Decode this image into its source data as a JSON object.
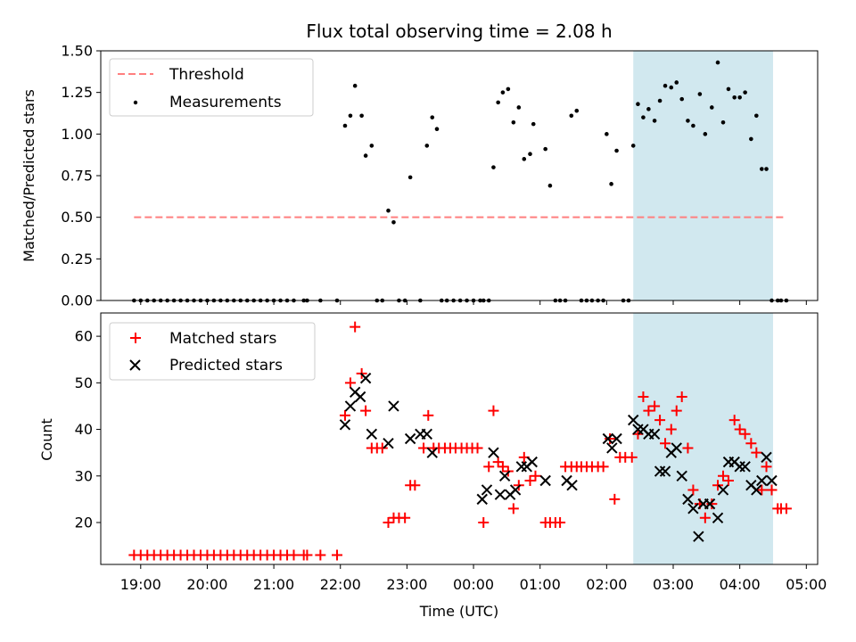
{
  "chart_data": [
    {
      "type": "scatter",
      "title": "Flux total observing time = 2.08 h",
      "xlabel": "",
      "ylabel": "Matched/Predicted stars",
      "xlim": [
        18.4,
        29.17
      ],
      "ylim": [
        0,
        1.5
      ],
      "y_ticks": [
        "0.00",
        "0.25",
        "0.50",
        "0.75",
        "1.00",
        "1.25",
        "1.50"
      ],
      "legend_position": "top-left",
      "highlight_span": [
        26.4,
        28.5
      ],
      "highlight_color": "#d1e8ef",
      "threshold": {
        "name": "Threshold",
        "value": 0.5,
        "x": [
          18.9,
          28.67
        ],
        "color": "#ff7f7f"
      },
      "series": [
        {
          "name": "Measurements",
          "color": "#000000",
          "x": [
            18.9,
            19.0,
            19.1,
            19.2,
            19.3,
            19.4,
            19.5,
            19.6,
            19.7,
            19.8,
            19.9,
            20.0,
            20.1,
            20.2,
            20.3,
            20.4,
            20.5,
            20.6,
            20.7,
            20.8,
            20.9,
            21.0,
            21.1,
            21.2,
            21.3,
            21.45,
            21.5,
            21.7,
            21.95,
            22.07,
            22.15,
            22.22,
            22.32,
            22.38,
            22.47,
            22.55,
            22.63,
            22.72,
            22.8,
            22.88,
            22.97,
            23.05,
            23.2,
            23.3,
            23.38,
            23.45,
            23.52,
            23.6,
            23.7,
            23.8,
            23.9,
            24.0,
            24.1,
            24.15,
            24.23,
            24.3,
            24.37,
            24.44,
            24.52,
            24.6,
            24.68,
            24.76,
            24.85,
            24.9,
            25.08,
            25.15,
            25.23,
            25.3,
            25.38,
            25.47,
            25.55,
            25.62,
            25.7,
            25.78,
            25.87,
            25.95,
            26.0,
            26.07,
            26.15,
            26.25,
            26.33,
            26.4,
            26.47,
            26.55,
            26.63,
            26.72,
            26.8,
            26.88,
            26.97,
            27.05,
            27.13,
            27.22,
            27.3,
            27.4,
            27.48,
            27.58,
            27.67,
            27.75,
            27.83,
            27.92,
            28.0,
            28.08,
            28.17,
            28.25,
            28.33,
            28.4,
            28.48,
            28.57,
            28.62,
            28.7
          ],
          "y": [
            0.0,
            0.0,
            0.0,
            0.0,
            0.0,
            0.0,
            0.0,
            0.0,
            0.0,
            0.0,
            0.0,
            0.0,
            0.0,
            0.0,
            0.0,
            0.0,
            0.0,
            0.0,
            0.0,
            0.0,
            0.0,
            0.0,
            0.0,
            0.0,
            0.0,
            0.0,
            0.0,
            0.0,
            0.0,
            1.05,
            1.11,
            1.29,
            1.11,
            0.87,
            0.93,
            0.0,
            0.0,
            0.54,
            0.47,
            0.0,
            0.0,
            0.74,
            0.0,
            0.93,
            1.1,
            1.03,
            0.0,
            0.0,
            0.0,
            0.0,
            0.0,
            0.0,
            0.0,
            0.0,
            0.0,
            0.8,
            1.19,
            1.25,
            1.27,
            1.07,
            1.16,
            0.85,
            0.88,
            1.06,
            0.91,
            0.69,
            0.0,
            0.0,
            0.0,
            1.11,
            1.14,
            0.0,
            0.0,
            0.0,
            0.0,
            0.0,
            1.0,
            0.7,
            0.9,
            0.0,
            0.0,
            0.93,
            1.18,
            1.1,
            1.15,
            1.08,
            1.2,
            1.29,
            1.28,
            1.31,
            1.21,
            1.08,
            1.05,
            1.24,
            1.0,
            1.16,
            1.43,
            1.07,
            1.27,
            1.22,
            1.22,
            1.25,
            0.97,
            1.11,
            0.79,
            0.79,
            0.0,
            0.0,
            0.0,
            0.0
          ]
        }
      ]
    },
    {
      "type": "scatter",
      "title": "",
      "xlabel": "Time (UTC)",
      "ylabel": "Count",
      "xlim": [
        18.4,
        29.17
      ],
      "ylim": [
        11,
        65
      ],
      "y_ticks": [
        "20",
        "30",
        "40",
        "50",
        "60"
      ],
      "x_ticks": [
        "19:00",
        "20:00",
        "21:00",
        "22:00",
        "23:00",
        "00:00",
        "01:00",
        "02:00",
        "03:00",
        "04:00",
        "05:00"
      ],
      "legend_position": "top-left",
      "highlight_span": [
        26.4,
        28.5
      ],
      "series": [
        {
          "name": "Matched stars",
          "marker": "plus",
          "color": "#ff0000",
          "x": [
            18.9,
            19.0,
            19.1,
            19.2,
            19.3,
            19.4,
            19.5,
            19.6,
            19.7,
            19.8,
            19.9,
            20.0,
            20.1,
            20.2,
            20.3,
            20.4,
            20.5,
            20.6,
            20.7,
            20.8,
            20.9,
            21.0,
            21.1,
            21.2,
            21.3,
            21.45,
            21.5,
            21.7,
            21.95,
            22.07,
            22.15,
            22.22,
            22.32,
            22.38,
            22.47,
            22.55,
            22.63,
            22.72,
            22.8,
            22.88,
            22.97,
            23.05,
            23.12,
            23.25,
            23.32,
            23.4,
            23.48,
            23.57,
            23.65,
            23.73,
            23.82,
            23.9,
            23.98,
            24.06,
            24.15,
            24.23,
            24.3,
            24.37,
            24.44,
            24.52,
            24.6,
            24.68,
            24.76,
            24.85,
            24.93,
            25.08,
            25.15,
            25.23,
            25.3,
            25.38,
            25.47,
            25.55,
            25.62,
            25.7,
            25.78,
            25.87,
            25.95,
            26.05,
            26.12,
            26.2,
            26.28,
            26.38,
            26.47,
            26.55,
            26.63,
            26.72,
            26.8,
            26.88,
            26.97,
            27.05,
            27.13,
            27.22,
            27.3,
            27.4,
            27.48,
            27.58,
            27.67,
            27.75,
            27.83,
            27.92,
            28.0,
            28.08,
            28.17,
            28.25,
            28.33,
            28.4,
            28.48,
            28.57,
            28.62,
            28.7
          ],
          "y": [
            13,
            13,
            13,
            13,
            13,
            13,
            13,
            13,
            13,
            13,
            13,
            13,
            13,
            13,
            13,
            13,
            13,
            13,
            13,
            13,
            13,
            13,
            13,
            13,
            13,
            13,
            13,
            13,
            13,
            43,
            50,
            62,
            52,
            44,
            36,
            36,
            36,
            20,
            21,
            21,
            21,
            28,
            28,
            36,
            43,
            36,
            36,
            36,
            36,
            36,
            36,
            36,
            36,
            36,
            20,
            32,
            44,
            33,
            32,
            31,
            23,
            28,
            34,
            29,
            30,
            20,
            20,
            20,
            20,
            32,
            32,
            32,
            32,
            32,
            32,
            32,
            32,
            38,
            25,
            34,
            34,
            34,
            39,
            47,
            44,
            45,
            42,
            37,
            40,
            44,
            47,
            36,
            27,
            24,
            21,
            24,
            28,
            30,
            29,
            42,
            40,
            39,
            37,
            35,
            27,
            32,
            27,
            23,
            23,
            23
          ]
        },
        {
          "name": "Predicted stars",
          "marker": "x",
          "color": "#000000",
          "x": [
            22.07,
            22.15,
            22.22,
            22.3,
            22.38,
            22.47,
            22.72,
            22.8,
            23.05,
            23.2,
            23.3,
            23.38,
            24.13,
            24.2,
            24.3,
            24.4,
            24.47,
            24.55,
            24.63,
            24.72,
            24.8,
            24.88,
            25.08,
            25.4,
            25.48,
            26.02,
            26.08,
            26.15,
            26.4,
            26.47,
            26.55,
            26.63,
            26.72,
            26.8,
            26.88,
            26.97,
            27.05,
            27.13,
            27.22,
            27.3,
            27.38,
            27.45,
            27.55,
            27.67,
            27.75,
            27.83,
            27.92,
            28.0,
            28.08,
            28.17,
            28.25,
            28.33,
            28.4,
            28.48
          ],
          "y": [
            41,
            45,
            48,
            47,
            51,
            39,
            37,
            45,
            38,
            39,
            39,
            35,
            25,
            27,
            35,
            26,
            30,
            26,
            27,
            32,
            32,
            33,
            29,
            29,
            28,
            38,
            36,
            38,
            42,
            40,
            40,
            39,
            39,
            31,
            31,
            35,
            36,
            30,
            25,
            23,
            17,
            24,
            24,
            21,
            27,
            33,
            33,
            32,
            32,
            28,
            27,
            29,
            34,
            29
          ]
        }
      ]
    }
  ]
}
